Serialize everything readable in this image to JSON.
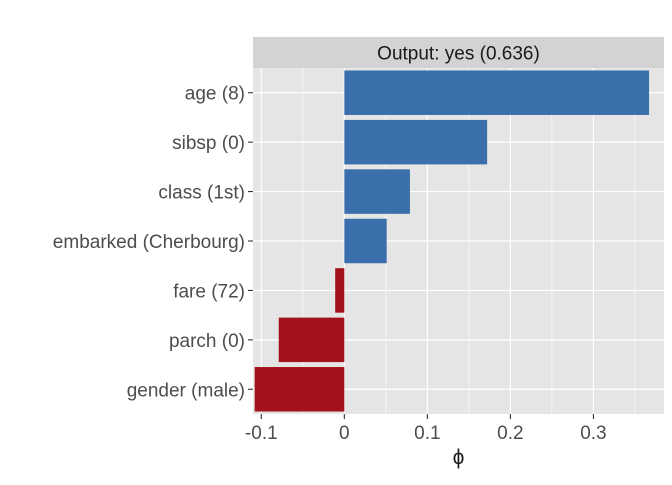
{
  "chart_data": {
    "type": "bar",
    "orientation": "horizontal",
    "facet_label": "Output: yes (0.636)",
    "categories": [
      "age (8)",
      "sibsp (0)",
      "class (1st)",
      "embarked (Cherbourg)",
      "fare (72)",
      "parch (0)",
      "gender (male)"
    ],
    "values": [
      0.367,
      0.172,
      0.079,
      0.051,
      -0.011,
      -0.079,
      -0.108
    ],
    "xlabel": "ϕ",
    "ylabel": "",
    "xlim": [
      -0.11,
      0.385
    ],
    "x_ticks": [
      -0.1,
      0,
      0.1,
      0.2,
      0.3
    ],
    "x_tick_labels": [
      "-0.1",
      "0",
      "0.1",
      "0.2",
      "0.3"
    ],
    "grid": true,
    "legend": "none",
    "colors": {
      "positive": "#3a6fab",
      "negative": "#a3121a",
      "panel_background": "#e5e5e5",
      "grid": "#ffffff",
      "strip_background": "#d3d3d3",
      "text": "#1a1a1a",
      "tick_text": "#4d4d4d"
    }
  }
}
